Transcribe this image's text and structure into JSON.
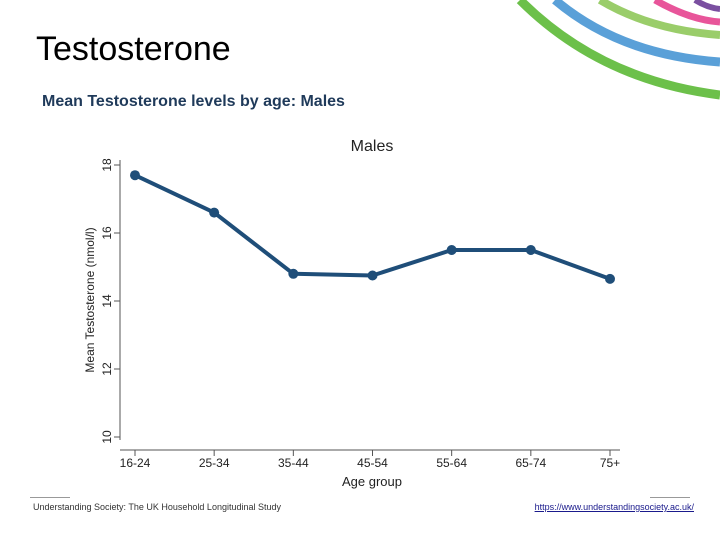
{
  "slide": {
    "title": "Testosterone",
    "subtitle": "Mean Testosterone levels by age: Males"
  },
  "footer": {
    "source": "Understanding Society: The UK Household Longitudinal Study",
    "link": "https://www.understandingsociety.ac.uk/"
  },
  "colors": {
    "line": "#1f4e79",
    "deco_green": "#6cc04a",
    "deco_blue": "#5aa0d8",
    "deco_pink": "#e8559a",
    "deco_purple": "#7a4fa0",
    "deco_lightgreen": "#9acd6a"
  },
  "chart_data": {
    "type": "line",
    "title": "Males",
    "xlabel": "Age group",
    "ylabel": "Mean Testosterone (nmol/l)",
    "categories": [
      "16-24",
      "25-34",
      "35-44",
      "45-54",
      "55-64",
      "65-74",
      "75+"
    ],
    "values": [
      17.7,
      16.6,
      14.8,
      14.75,
      15.5,
      15.5,
      14.65
    ],
    "yticks": [
      10,
      12,
      14,
      16,
      18
    ],
    "ylim": [
      10,
      18.5
    ],
    "grid": false
  }
}
